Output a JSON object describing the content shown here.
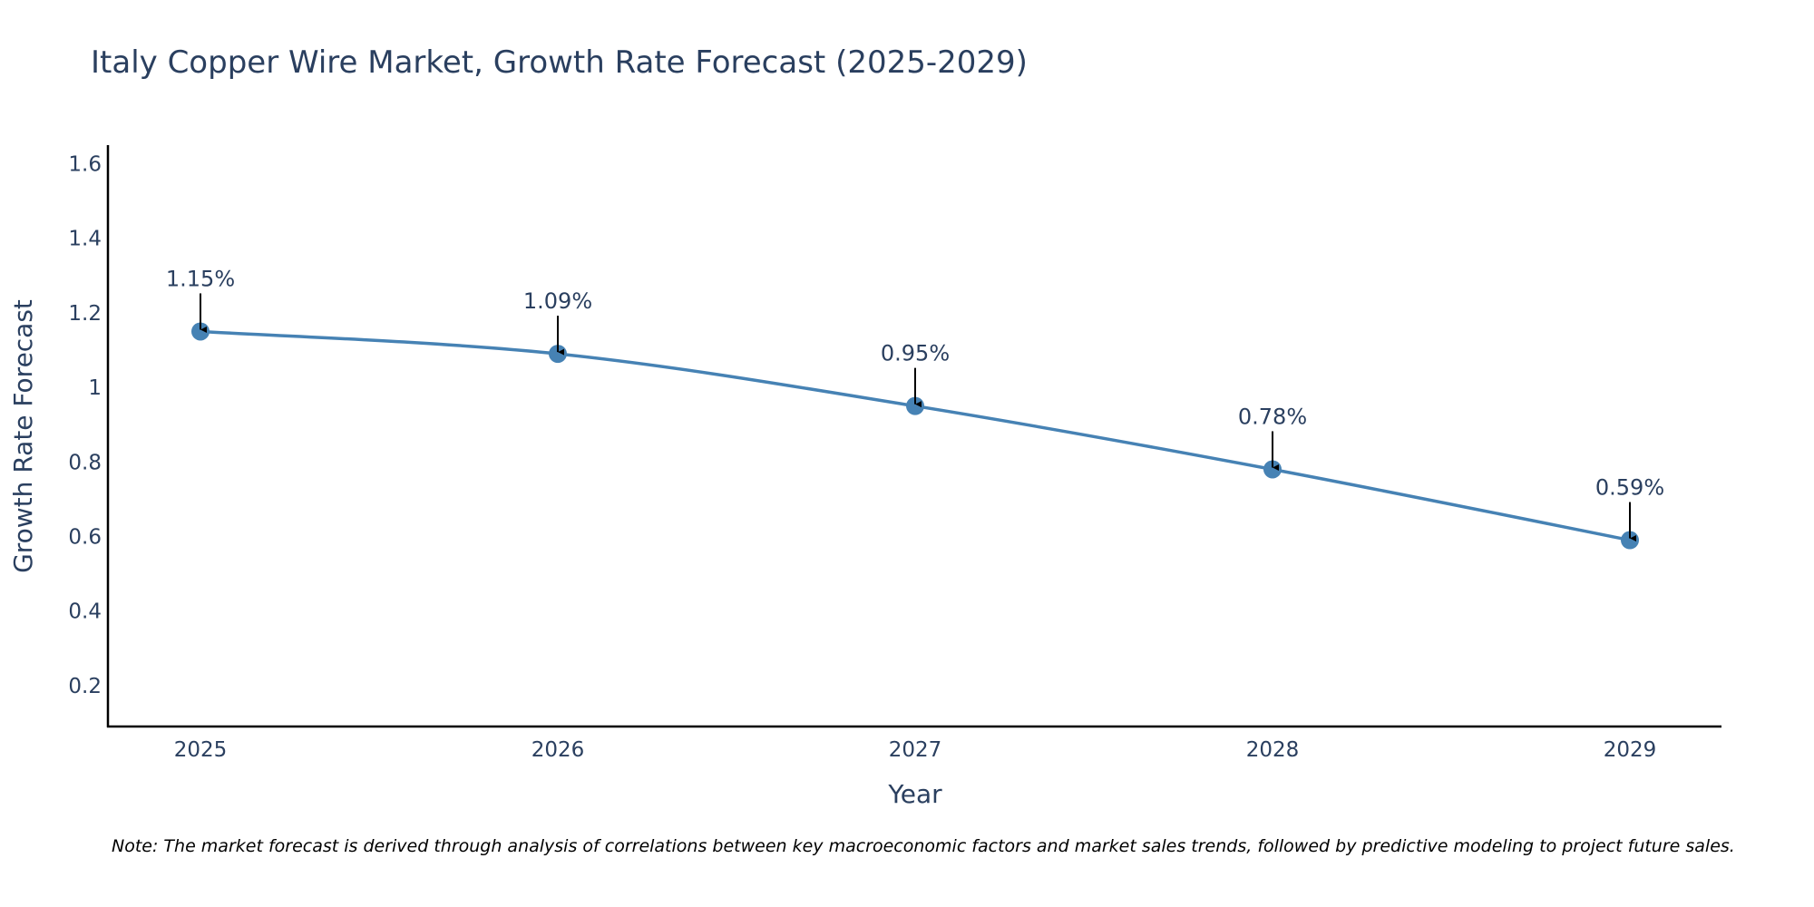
{
  "chart_data": {
    "type": "line",
    "title": "Italy Copper Wire Market, Growth Rate Forecast (2025-2029)",
    "xlabel": "Year",
    "ylabel": "Growth Rate Forecast",
    "categories": [
      "2025",
      "2026",
      "2027",
      "2028",
      "2029"
    ],
    "series": [
      {
        "name": "Growth Rate Forecast",
        "values": [
          1.15,
          1.09,
          0.95,
          0.78,
          0.59
        ]
      }
    ],
    "data_labels": [
      "1.15%",
      "1.09%",
      "0.95%",
      "0.78%",
      "0.59%"
    ],
    "yticks": [
      "0.2",
      "0.4",
      "0.6",
      "0.8",
      "1",
      "1.2",
      "1.4",
      "1.6"
    ],
    "ylim": [
      0.09,
      1.65
    ],
    "grid": false,
    "line_color": "#4682b4",
    "marker_color": "#4682b4",
    "arrow_color": "#000000"
  },
  "note": "Note: The market forecast is derived through analysis of correlations between key macroeconomic factors and market sales trends, followed by predictive modeling to project future sales."
}
